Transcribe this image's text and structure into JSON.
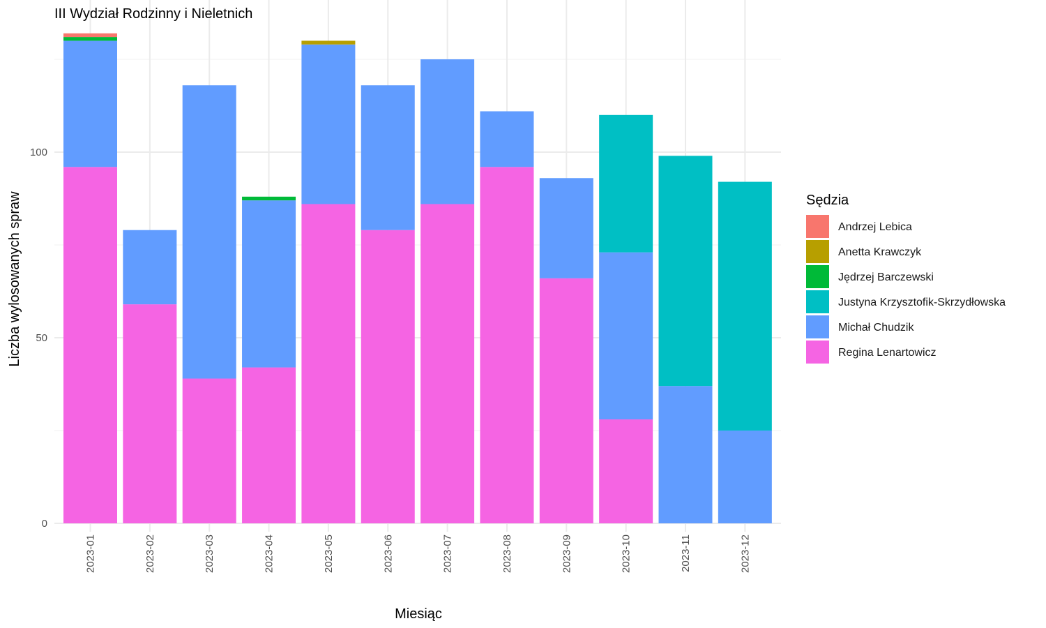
{
  "chart_data": {
    "type": "bar",
    "stacked": true,
    "title": "III Wydział Rodzinny i Nieletnich",
    "xlabel": "Miesiąc",
    "ylabel": "Liczba wylosowanych spraw",
    "ylim": [
      0,
      132
    ],
    "yticks": [
      0,
      50,
      100
    ],
    "grid": true,
    "legend_title": "Sędzia",
    "legend_position": "right",
    "categories": [
      "2023-01",
      "2023-02",
      "2023-03",
      "2023-04",
      "2023-05",
      "2023-06",
      "2023-07",
      "2023-08",
      "2023-09",
      "2023-10",
      "2023-11",
      "2023-12"
    ],
    "series": [
      {
        "name": "Andrzej Lebica",
        "color": "#F8766D",
        "values": [
          1,
          0,
          0,
          0,
          0,
          0,
          0,
          0,
          0,
          0,
          0,
          0
        ]
      },
      {
        "name": "Anetta Krawczyk",
        "color": "#B79F00",
        "values": [
          0,
          0,
          0,
          0,
          1,
          0,
          0,
          0,
          0,
          0,
          0,
          0
        ]
      },
      {
        "name": "Jędrzej Barczewski",
        "color": "#00BA38",
        "values": [
          1,
          0,
          0,
          1,
          0,
          0,
          0,
          0,
          0,
          0,
          0,
          0
        ]
      },
      {
        "name": "Justyna Krzysztofik-Skrzydłowska",
        "color": "#00BFC4",
        "values": [
          0,
          0,
          0,
          0,
          0,
          0,
          0,
          0,
          0,
          37,
          62,
          67
        ]
      },
      {
        "name": "Michał Chudzik",
        "color": "#619CFF",
        "values": [
          34,
          20,
          79,
          45,
          43,
          39,
          39,
          15,
          27,
          45,
          37,
          25
        ]
      },
      {
        "name": "Regina Lenartowicz",
        "color": "#F564E3",
        "values": [
          96,
          59,
          39,
          42,
          86,
          79,
          86,
          96,
          66,
          28,
          0,
          0
        ]
      }
    ]
  }
}
